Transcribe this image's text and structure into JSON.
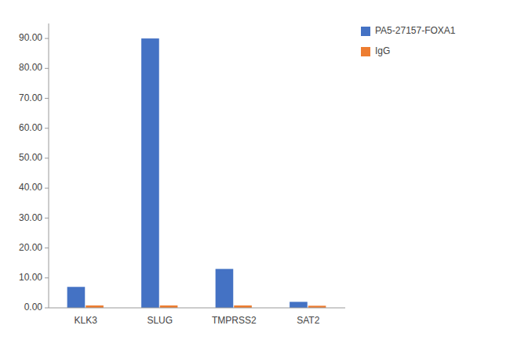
{
  "chart_data": {
    "type": "bar",
    "categories": [
      "KLK3",
      "SLUG",
      "TMPRSS2",
      "SAT2"
    ],
    "series": [
      {
        "name": "PA5-27157-FOXA1",
        "color": "#4472C4",
        "values": [
          7.0,
          90.0,
          13.0,
          2.0
        ]
      },
      {
        "name": "IgG",
        "color": "#ED7D31",
        "values": [
          0.8,
          0.8,
          0.8,
          0.7
        ]
      }
    ],
    "ylim": [
      0,
      95
    ],
    "yticks": [
      {
        "value": 0.0,
        "label": "0.00"
      },
      {
        "value": 10.0,
        "label": "10.00"
      },
      {
        "value": 20.0,
        "label": "20.00"
      },
      {
        "value": 30.0,
        "label": "30.00"
      },
      {
        "value": 40.0,
        "label": "40.00"
      },
      {
        "value": 50.0,
        "label": "50.00"
      },
      {
        "value": 60.0,
        "label": "60.00"
      },
      {
        "value": 70.0,
        "label": "70.00"
      },
      {
        "value": 80.0,
        "label": "80.00"
      },
      {
        "value": 90.0,
        "label": "90.00"
      }
    ],
    "grid": false,
    "legend": "right"
  }
}
